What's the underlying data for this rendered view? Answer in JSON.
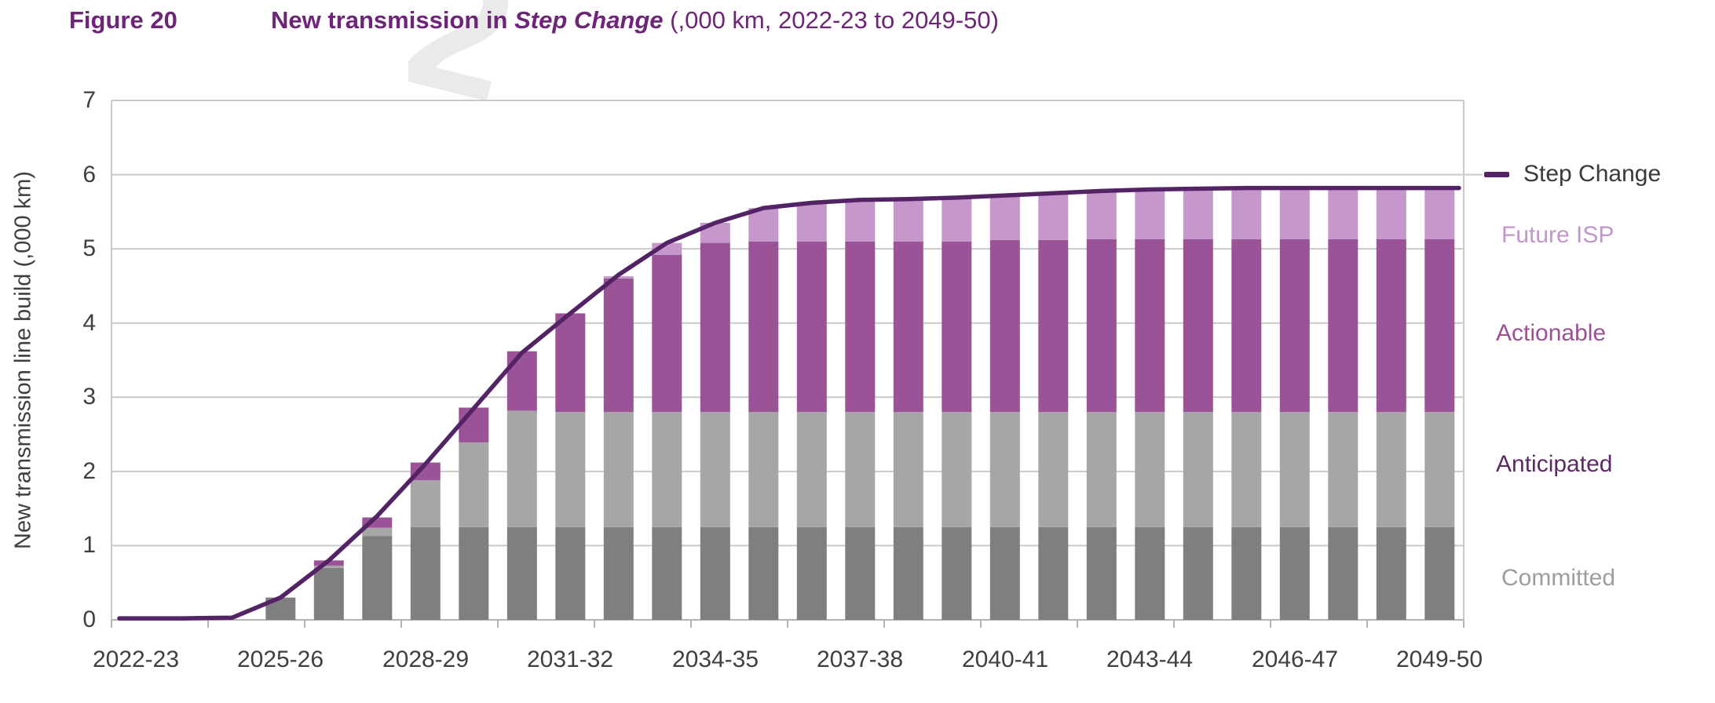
{
  "figure": {
    "label": "Figure 20",
    "title_prefix": "New transmission in ",
    "title_scenario": "Step Change",
    "title_units": " (,000 km, 2022-23 to 2049-50)",
    "title_color": "#6e2478",
    "watermark_glyph": "2"
  },
  "y_axis": {
    "title": "New transmission line build (,000 km)",
    "ticks": [
      "7",
      "6",
      "5",
      "4",
      "3",
      "2",
      "1",
      "0"
    ]
  },
  "x_axis": {
    "ticks": [
      "2022-23",
      "2025-26",
      "2028-29",
      "2031-32",
      "2034-35",
      "2037-38",
      "2040-41",
      "2043-44",
      "2046-47",
      "2049-50"
    ]
  },
  "legend": [
    {
      "label": "Step Change",
      "marker": "dash",
      "color": "#542366",
      "text_color": "#3a3a3a"
    },
    {
      "label": "Future ISP",
      "marker": "none",
      "color": "#c597ca",
      "text_color": "#c196c9"
    },
    {
      "label": "Actionable",
      "marker": "none",
      "color": "#9a5397",
      "text_color": "#9a4f97"
    },
    {
      "label": "Anticipated",
      "marker": "none",
      "color": "#a6a6a6",
      "text_color": "#5c2a64"
    },
    {
      "label": "Committed",
      "marker": "none",
      "color": "#7f7f7f",
      "text_color": "#9d9d9d"
    }
  ],
  "colors": {
    "grid": "#c9c9c9",
    "axis": "#b3b3b3",
    "committed": "#7f7f7f",
    "anticipated": "#a6a6a6",
    "actionable": "#9a5397",
    "future_isp": "#c597ca",
    "step_change_line": "#542366"
  },
  "chart_data": {
    "type": "bar",
    "subtype": "stacked-bars-with-line-overlay",
    "title": "New transmission in Step Change (,000 km, 2022-23 to 2049-50)",
    "ylabel": "New transmission line build (,000 km)",
    "ylim": [
      0,
      7
    ],
    "grid": true,
    "legend_position": "right",
    "x": [
      "2022-23",
      "2023-24",
      "2024-25",
      "2025-26",
      "2026-27",
      "2027-28",
      "2028-29",
      "2029-30",
      "2030-31",
      "2031-32",
      "2032-33",
      "2033-34",
      "2034-35",
      "2035-36",
      "2036-37",
      "2037-38",
      "2038-39",
      "2039-40",
      "2040-41",
      "2041-42",
      "2042-43",
      "2043-44",
      "2044-45",
      "2045-46",
      "2046-47",
      "2047-48",
      "2048-49",
      "2049-50"
    ],
    "x_tick_labels": [
      "2022-23",
      "2025-26",
      "2028-29",
      "2031-32",
      "2034-35",
      "2037-38",
      "2040-41",
      "2043-44",
      "2046-47",
      "2049-50"
    ],
    "series": [
      {
        "name": "Committed",
        "color": "#7f7f7f",
        "values": [
          0,
          0,
          0,
          0.3,
          0.7,
          1.13,
          1.25,
          1.25,
          1.25,
          1.25,
          1.25,
          1.25,
          1.25,
          1.25,
          1.25,
          1.25,
          1.25,
          1.25,
          1.25,
          1.25,
          1.25,
          1.25,
          1.25,
          1.25,
          1.25,
          1.25,
          1.25,
          1.25
        ]
      },
      {
        "name": "Anticipated",
        "color": "#a6a6a6",
        "values": [
          0,
          0,
          0,
          0,
          0.03,
          0.11,
          0.63,
          1.14,
          1.57,
          1.55,
          1.55,
          1.55,
          1.55,
          1.55,
          1.55,
          1.55,
          1.55,
          1.55,
          1.55,
          1.55,
          1.55,
          1.55,
          1.55,
          1.55,
          1.55,
          1.55,
          1.55,
          1.55
        ]
      },
      {
        "name": "Actionable",
        "color": "#9a5397",
        "values": [
          0,
          0,
          0,
          0,
          0.07,
          0.14,
          0.24,
          0.47,
          0.8,
          1.33,
          1.8,
          2.12,
          2.28,
          2.3,
          2.3,
          2.3,
          2.3,
          2.3,
          2.32,
          2.32,
          2.33,
          2.33,
          2.33,
          2.33,
          2.33,
          2.33,
          2.33,
          2.33
        ]
      },
      {
        "name": "Future ISP",
        "color": "#c597ca",
        "values": [
          0,
          0,
          0,
          0,
          0,
          0,
          0,
          0,
          0,
          0,
          0.03,
          0.16,
          0.27,
          0.45,
          0.52,
          0.55,
          0.55,
          0.58,
          0.6,
          0.63,
          0.65,
          0.67,
          0.67,
          0.67,
          0.67,
          0.67,
          0.67,
          0.67
        ]
      }
    ],
    "line_series": {
      "name": "Step Change",
      "color": "#542366",
      "values": [
        0.02,
        0.02,
        0.03,
        0.3,
        0.8,
        1.4,
        2.1,
        2.85,
        3.6,
        4.13,
        4.65,
        5.08,
        5.35,
        5.55,
        5.62,
        5.66,
        5.67,
        5.69,
        5.72,
        5.75,
        5.78,
        5.8,
        5.81,
        5.82,
        5.82,
        5.82,
        5.82,
        5.82
      ]
    }
  }
}
